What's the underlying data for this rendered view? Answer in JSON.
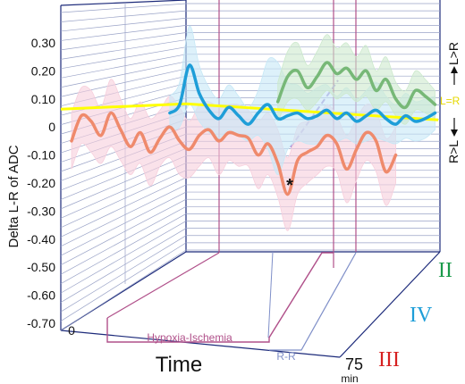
{
  "chart_data": {
    "type": "line",
    "ylabel": "Delta L-R of ADC",
    "xlabel": "Time",
    "x_start_label": "0",
    "x_end_label": "75",
    "x_unit_label": "min",
    "xlim": [
      0,
      75
    ],
    "ylim": [
      -0.7,
      0.35
    ],
    "y_ticks": [
      "0.30",
      "0.20",
      "0.10",
      "0",
      "-0.10",
      "-0.20",
      "-0.30",
      "-0.40",
      "-0.50",
      "-0.60",
      "-0.70"
    ],
    "y_tick_values": [
      0.3,
      0.2,
      0.1,
      0,
      -0.1,
      -0.2,
      -0.3,
      -0.4,
      -0.5,
      -0.6,
      -0.7
    ],
    "grid": true,
    "reference_line": {
      "label": "L=R",
      "value": 0.07,
      "color": "#ffff00"
    },
    "side_labels": {
      "top": "L>R",
      "bottom": "R>L"
    },
    "periods": [
      {
        "label": "Hypoxia-Ischemia",
        "color": "#b0508a"
      },
      {
        "label": "R-R",
        "color": "#7f8fc8"
      }
    ],
    "annotation": "*",
    "series": [
      {
        "name": "II",
        "color": "#77b877",
        "band_color": "#cde9cd",
        "x": [
          42,
          44,
          46,
          48,
          50,
          52,
          54,
          56,
          58,
          60,
          62,
          64,
          66,
          68,
          70,
          72,
          74
        ],
        "y": [
          0.09,
          0.18,
          0.2,
          0.14,
          0.18,
          0.23,
          0.19,
          0.21,
          0.17,
          0.2,
          0.13,
          0.17,
          0.1,
          0.07,
          0.13,
          0.11,
          0.08
        ],
        "band": [
          0.07,
          0.09,
          0.1,
          0.08,
          0.09,
          0.1,
          0.09,
          0.09,
          0.08,
          0.09,
          0.07,
          0.08,
          0.06,
          0.06,
          0.07,
          0.06,
          0.05
        ]
      },
      {
        "name": "IV",
        "color": "#1e9ed8",
        "band_color": "#c6e8f6",
        "x": [
          20,
          22,
          24,
          26,
          28,
          30,
          32,
          34,
          36,
          38,
          40,
          42,
          44,
          46,
          48,
          50,
          52,
          54,
          56,
          58,
          60,
          62,
          64,
          66,
          68,
          70,
          72,
          74
        ],
        "y": [
          0.05,
          0.08,
          0.22,
          0.12,
          0.06,
          0.03,
          0.07,
          0.04,
          0.01,
          0.05,
          0.08,
          0.03,
          0.04,
          0.05,
          0.03,
          0.04,
          0.06,
          0.03,
          0.05,
          0.02,
          0.04,
          0.06,
          0.03,
          0.01,
          0.04,
          0.02,
          0.03,
          0.05
        ],
        "band": [
          0.06,
          0.08,
          0.14,
          0.1,
          0.08,
          0.07,
          0.08,
          0.07,
          0.06,
          0.08,
          0.16,
          0.2,
          0.12,
          0.1,
          0.09,
          0.1,
          0.09,
          0.08,
          0.09,
          0.08,
          0.09,
          0.1,
          0.08,
          0.07,
          0.08,
          0.07,
          0.07,
          0.06
        ]
      },
      {
        "name": "III",
        "color": "#ef8a6c",
        "band_color": "#f7cfdc",
        "x": [
          0,
          2,
          4,
          6,
          8,
          10,
          12,
          14,
          16,
          18,
          20,
          22,
          24,
          26,
          28,
          30,
          32,
          34,
          36,
          38,
          40,
          42,
          44,
          46,
          48,
          50,
          52,
          54,
          56,
          58,
          60,
          62,
          64,
          66
        ],
        "y": [
          -0.05,
          0.04,
          0.02,
          -0.03,
          0.05,
          -0.01,
          -0.07,
          -0.02,
          -0.09,
          -0.04,
          0.0,
          -0.05,
          -0.08,
          -0.03,
          -0.01,
          -0.05,
          -0.02,
          -0.03,
          -0.04,
          -0.1,
          -0.06,
          -0.13,
          -0.24,
          -0.12,
          -0.09,
          -0.07,
          -0.03,
          -0.06,
          -0.15,
          -0.08,
          -0.02,
          -0.05,
          -0.16,
          -0.1
        ],
        "band": [
          0.1,
          0.1,
          0.11,
          0.1,
          0.12,
          0.11,
          0.1,
          0.11,
          0.12,
          0.1,
          0.11,
          0.12,
          0.1,
          0.11,
          0.1,
          0.12,
          0.1,
          0.11,
          0.1,
          0.12,
          0.11,
          0.12,
          0.13,
          0.12,
          0.11,
          0.1,
          0.11,
          0.1,
          0.12,
          0.11,
          0.1,
          0.11,
          0.12,
          0.1
        ]
      }
    ]
  }
}
